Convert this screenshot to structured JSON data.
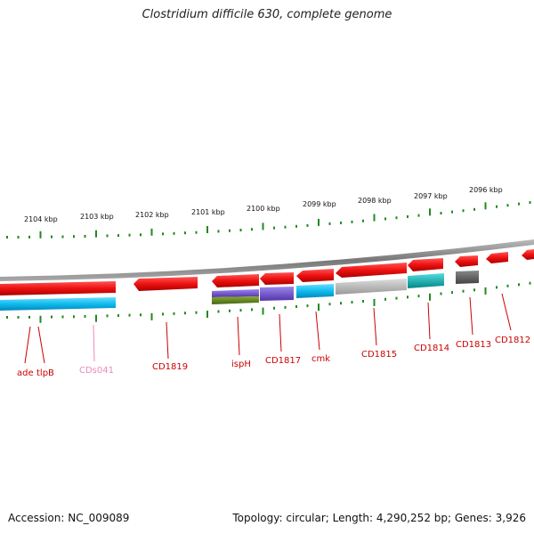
{
  "title": "Clostridium difficile 630, complete genome",
  "footer": {
    "accession": "Accession: NC_009089",
    "summary": "Topology: circular; Length: 4,290,252 bp; Genes: 3,926"
  },
  "scale_labels": [
    "2104 kbp",
    "2103 kbp",
    "2102 kbp",
    "2101 kbp",
    "2100 kbp",
    "2099 kbp",
    "2098 kbp",
    "2097 kbp",
    "2096 kbp"
  ],
  "colors": {
    "red_gene": "#ee1111",
    "blue_gene": "#11bbee",
    "purple_gene": "#7755cc",
    "olive_gene": "#668822",
    "gray_gene": "#bbbbbb",
    "dark_gray_gene": "#666666",
    "teal_gene": "#11bbbb",
    "tick_green": "#228822",
    "label_red": "#cc0000",
    "label_pink": "#ee88bb"
  },
  "gene_labels": [
    {
      "text": "ade",
      "color": "label_red"
    },
    {
      "text": "tlpB",
      "color": "label_red"
    },
    {
      "text": "CDs041",
      "color": "label_pink"
    },
    {
      "text": "CD1819",
      "color": "label_red"
    },
    {
      "text": "ispH",
      "color": "label_red"
    },
    {
      "text": "CD1817",
      "color": "label_red"
    },
    {
      "text": "cmk",
      "color": "label_red"
    },
    {
      "text": "CD1815",
      "color": "label_red"
    },
    {
      "text": "CD1814",
      "color": "label_red"
    },
    {
      "text": "CD1813",
      "color": "label_red"
    },
    {
      "text": "CD1812",
      "color": "label_red"
    }
  ]
}
